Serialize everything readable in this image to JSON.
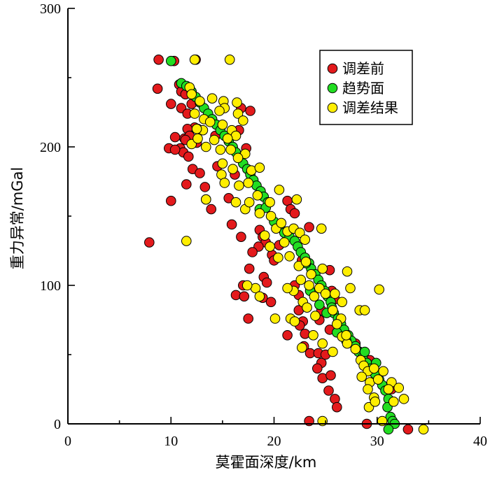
{
  "chart_data": {
    "type": "scatter",
    "xlabel": "莫霍面深度/km",
    "ylabel": "重力异常/mGal",
    "xlim": [
      0,
      40
    ],
    "ylim": [
      0,
      300
    ],
    "xticks": [
      0,
      10,
      20,
      30,
      40
    ],
    "yticks": [
      0,
      100,
      200,
      300
    ],
    "legend_position": "top-right",
    "series": [
      {
        "name": "调差前",
        "color": "#e31a1c",
        "points": [
          [
            8.8,
            263
          ],
          [
            8.7,
            242
          ],
          [
            10.3,
            262
          ],
          [
            12.4,
            263
          ],
          [
            10.8,
            245
          ],
          [
            11.0,
            240
          ],
          [
            11.4,
            238
          ],
          [
            10.0,
            231
          ],
          [
            11.0,
            228
          ],
          [
            11.6,
            224
          ],
          [
            12.3,
            214
          ],
          [
            11.6,
            213
          ],
          [
            11.3,
            206
          ],
          [
            11.8,
            208
          ],
          [
            12.6,
            213
          ],
          [
            10.4,
            207
          ],
          [
            10.9,
            199
          ],
          [
            11.4,
            205
          ],
          [
            12.5,
            203
          ],
          [
            9.8,
            199
          ],
          [
            11.2,
            196
          ],
          [
            10.4,
            198
          ],
          [
            11.7,
            193
          ],
          [
            12.1,
            184
          ],
          [
            12.8,
            181
          ],
          [
            11.5,
            173
          ],
          [
            13.3,
            171
          ],
          [
            14.5,
            186
          ],
          [
            16.6,
            212
          ],
          [
            17.3,
            199
          ],
          [
            17.7,
            226
          ],
          [
            10.0,
            161
          ],
          [
            13.4,
            162
          ],
          [
            13.9,
            155
          ],
          [
            15.6,
            163
          ],
          [
            16.2,
            180
          ],
          [
            15.9,
            144
          ],
          [
            7.9,
            131
          ],
          [
            16.8,
            135
          ],
          [
            18.6,
            140
          ],
          [
            18.9,
            135
          ],
          [
            19.2,
            131
          ],
          [
            18.5,
            128
          ],
          [
            17.9,
            124
          ],
          [
            17.6,
            112
          ],
          [
            17.0,
            100
          ],
          [
            16.3,
            93
          ],
          [
            17.1,
            92
          ],
          [
            19.0,
            106
          ],
          [
            19.3,
            102
          ],
          [
            18.9,
            91
          ],
          [
            19.7,
            88
          ],
          [
            17.5,
            76
          ],
          [
            19.8,
            122
          ],
          [
            20.5,
            129
          ],
          [
            20.0,
            118
          ],
          [
            21.3,
            161
          ],
          [
            21.6,
            155
          ],
          [
            22.0,
            152
          ],
          [
            22.7,
            118
          ],
          [
            22.0,
            100
          ],
          [
            22.4,
            93
          ],
          [
            22.4,
            82
          ],
          [
            22.8,
            74
          ],
          [
            22.5,
            71
          ],
          [
            23.0,
            65
          ],
          [
            21.3,
            64
          ],
          [
            22.9,
            56
          ],
          [
            23.5,
            51
          ],
          [
            24.3,
            51
          ],
          [
            24.6,
            44
          ],
          [
            24.2,
            40
          ],
          [
            24.7,
            33
          ],
          [
            25.5,
            35
          ],
          [
            25.3,
            24
          ],
          [
            25.9,
            18
          ],
          [
            26.1,
            12
          ],
          [
            24.6,
            82
          ],
          [
            25.6,
            96
          ],
          [
            25.9,
            90
          ],
          [
            24.4,
            75
          ],
          [
            25.4,
            68
          ],
          [
            26.8,
            67
          ],
          [
            25.0,
            50
          ],
          [
            25.4,
            111
          ],
          [
            23.4,
            142
          ],
          [
            27.9,
            58
          ],
          [
            28.3,
            52
          ],
          [
            29.3,
            46
          ],
          [
            31.4,
            25
          ],
          [
            23.4,
            2
          ],
          [
            29.0,
            0
          ],
          [
            33.0,
            -4
          ],
          [
            12.0,
            231
          ],
          [
            16.8,
            228
          ],
          [
            14.3,
            208
          ]
        ]
      },
      {
        "name": "趋势面",
        "color": "#22dd22",
        "points": [
          [
            10.0,
            262
          ],
          [
            11.0,
            246
          ],
          [
            11.5,
            244
          ],
          [
            12.0,
            240
          ],
          [
            12.4,
            236
          ],
          [
            12.8,
            232
          ],
          [
            13.2,
            228
          ],
          [
            13.6,
            224
          ],
          [
            14.0,
            220
          ],
          [
            14.4,
            216
          ],
          [
            14.8,
            212
          ],
          [
            15.2,
            208
          ],
          [
            15.6,
            204
          ],
          [
            16.0,
            200
          ],
          [
            16.3,
            196
          ],
          [
            16.7,
            192
          ],
          [
            17.0,
            188
          ],
          [
            17.4,
            184
          ],
          [
            17.7,
            180
          ],
          [
            18.0,
            176
          ],
          [
            18.3,
            172
          ],
          [
            18.7,
            168
          ],
          [
            19.0,
            164
          ],
          [
            19.4,
            160
          ],
          [
            18.6,
            155
          ],
          [
            19.2,
            156
          ],
          [
            20.0,
            146
          ],
          [
            20.6,
            142
          ],
          [
            21.0,
            138
          ],
          [
            21.5,
            135
          ],
          [
            22.0,
            132
          ],
          [
            22.3,
            128
          ],
          [
            22.6,
            124
          ],
          [
            23.0,
            120
          ],
          [
            23.4,
            116
          ],
          [
            23.6,
            112
          ],
          [
            24.0,
            108
          ],
          [
            24.3,
            104
          ],
          [
            24.6,
            100
          ],
          [
            24.9,
            96
          ],
          [
            25.2,
            92
          ],
          [
            25.5,
            88
          ],
          [
            25.6,
            84
          ],
          [
            25.8,
            80
          ],
          [
            26.2,
            76
          ],
          [
            26.5,
            72
          ],
          [
            26.8,
            68
          ],
          [
            27.2,
            64
          ],
          [
            27.5,
            60
          ],
          [
            27.9,
            56
          ],
          [
            28.2,
            52
          ],
          [
            28.6,
            48
          ],
          [
            29.0,
            44
          ],
          [
            29.4,
            40
          ],
          [
            29.8,
            36
          ],
          [
            30.2,
            32
          ],
          [
            30.5,
            28
          ],
          [
            30.8,
            24
          ],
          [
            31.1,
            18
          ],
          [
            31.0,
            12
          ],
          [
            31.3,
            5
          ],
          [
            31.5,
            2
          ],
          [
            31.7,
            0
          ],
          [
            31.1,
            -4
          ],
          [
            23.1,
            116
          ],
          [
            23.5,
            96
          ],
          [
            24.4,
            86
          ],
          [
            25.1,
            80
          ],
          [
            26.1,
            66
          ],
          [
            27.0,
            60
          ],
          [
            28.8,
            52
          ],
          [
            29.9,
            44
          ]
        ]
      },
      {
        "name": "调差结果",
        "color": "#ffee00",
        "points": [
          [
            12.3,
            263
          ],
          [
            15.7,
            263
          ],
          [
            11.8,
            243
          ],
          [
            12.0,
            238
          ],
          [
            12.8,
            233
          ],
          [
            14.0,
            235
          ],
          [
            15.1,
            233
          ],
          [
            16.4,
            232
          ],
          [
            15.2,
            228
          ],
          [
            14.7,
            226
          ],
          [
            16.5,
            224
          ],
          [
            17.0,
            219
          ],
          [
            12.3,
            224
          ],
          [
            13.2,
            220
          ],
          [
            13.8,
            218
          ],
          [
            15.0,
            216
          ],
          [
            15.9,
            212
          ],
          [
            16.3,
            208
          ],
          [
            15.5,
            206
          ],
          [
            14.2,
            205
          ],
          [
            13.1,
            212
          ],
          [
            12.5,
            213
          ],
          [
            13.4,
            200
          ],
          [
            14.8,
            198
          ],
          [
            15.8,
            198
          ],
          [
            17.2,
            195
          ],
          [
            16.5,
            192
          ],
          [
            15.0,
            188
          ],
          [
            16.0,
            184
          ],
          [
            14.9,
            180
          ],
          [
            17.8,
            183
          ],
          [
            18.6,
            185
          ],
          [
            16.6,
            172
          ],
          [
            17.5,
            174
          ],
          [
            15.2,
            174
          ],
          [
            18.4,
            165
          ],
          [
            19.6,
            160
          ],
          [
            20.5,
            169
          ],
          [
            22.2,
            162
          ],
          [
            16.3,
            160
          ],
          [
            17.2,
            155
          ],
          [
            18.6,
            152
          ],
          [
            13.4,
            162
          ],
          [
            11.5,
            132
          ],
          [
            20.2,
            141
          ],
          [
            20.7,
            145
          ],
          [
            21.3,
            139
          ],
          [
            21.9,
            141
          ],
          [
            22.5,
            138
          ],
          [
            23.0,
            133
          ],
          [
            24.6,
            141
          ],
          [
            21.0,
            131
          ],
          [
            19.6,
            128
          ],
          [
            19.1,
            136
          ],
          [
            21.5,
            121
          ],
          [
            20.4,
            120
          ],
          [
            22.4,
            114
          ],
          [
            23.1,
            117
          ],
          [
            24.7,
            112
          ],
          [
            23.6,
            108
          ],
          [
            22.6,
            104
          ],
          [
            23.4,
            100
          ],
          [
            24.4,
            98
          ],
          [
            25.0,
            94
          ],
          [
            23.9,
            92
          ],
          [
            22.8,
            88
          ],
          [
            21.9,
            96
          ],
          [
            21.3,
            98
          ],
          [
            21.6,
            76
          ],
          [
            20.1,
            76
          ],
          [
            24.0,
            78
          ],
          [
            25.7,
            82
          ],
          [
            26.5,
            76
          ],
          [
            27.1,
            110
          ],
          [
            27.4,
            98
          ],
          [
            26.6,
            88
          ],
          [
            26.1,
            72
          ],
          [
            28.3,
            82
          ],
          [
            28.8,
            82
          ],
          [
            23.8,
            64
          ],
          [
            22.7,
            55
          ],
          [
            24.7,
            58
          ],
          [
            25.7,
            52
          ],
          [
            26.6,
            63
          ],
          [
            27.1,
            58
          ],
          [
            27.9,
            54
          ],
          [
            28.4,
            46
          ],
          [
            28.7,
            42
          ],
          [
            29.1,
            38
          ],
          [
            29.7,
            40
          ],
          [
            28.5,
            34
          ],
          [
            29.3,
            30
          ],
          [
            30.6,
            38
          ],
          [
            30.1,
            32
          ],
          [
            31.4,
            30
          ],
          [
            29.1,
            25
          ],
          [
            29.7,
            19
          ],
          [
            29.2,
            12
          ],
          [
            31.1,
            25
          ],
          [
            32.1,
            26
          ],
          [
            32.6,
            18
          ],
          [
            30.2,
            97
          ],
          [
            24.7,
            2
          ],
          [
            30.5,
            2
          ],
          [
            34.5,
            -4
          ],
          [
            18.2,
            98
          ],
          [
            18.6,
            92
          ],
          [
            17.4,
            100
          ],
          [
            22.0,
            74
          ],
          [
            23.2,
            84
          ],
          [
            25.9,
            94
          ],
          [
            27.0,
            64
          ],
          [
            29.8,
            16
          ],
          [
            31.6,
            16
          ],
          [
            19.7,
            150
          ],
          [
            17.6,
            160
          ],
          [
            12.0,
            202
          ],
          [
            12.6,
            206
          ]
        ]
      }
    ]
  }
}
